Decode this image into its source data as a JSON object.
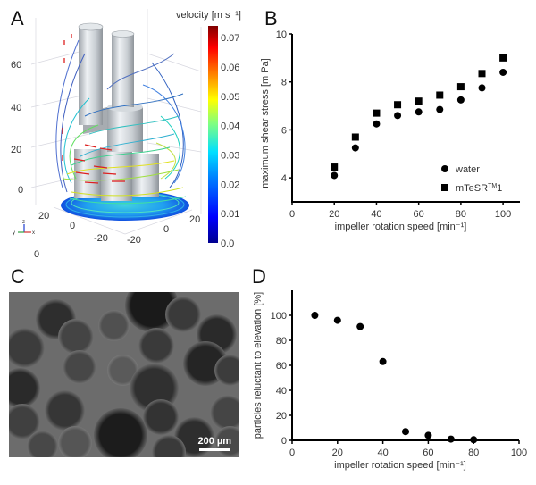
{
  "panels": {
    "A": {
      "letter": "A",
      "colorbar": {
        "title": "velocity [m s⁻¹]",
        "ticks": [
          "0.07",
          "0.06",
          "0.05",
          "0.04",
          "0.03",
          "0.02",
          "0.01",
          "0.0"
        ],
        "range": [
          0.0,
          0.074
        ],
        "colormap": "jet"
      },
      "axis_labels": {
        "z_ticks": [
          "60",
          "40",
          "20",
          "0"
        ],
        "floor_ticks_left": [
          "20",
          "0",
          "-20"
        ],
        "floor_ticks_right": [
          "20",
          "0",
          "-20"
        ],
        "bottom": "0"
      },
      "triad": {
        "z": "z",
        "y": "y",
        "x": "x"
      }
    },
    "C": {
      "letter": "C",
      "scale_bar": "200 µm"
    }
  },
  "chart_data": [
    {
      "id": "B",
      "letter": "B",
      "type": "scatter",
      "title": "",
      "xlabel": "impeller rotation speed [min⁻¹]",
      "ylabel": "maximum shear stress [m Pa]",
      "xlim": [
        0,
        108
      ],
      "ylim": [
        3,
        10
      ],
      "x_ticks": [
        0,
        20,
        40,
        60,
        80,
        100
      ],
      "y_ticks": [
        4,
        6,
        8,
        10
      ],
      "grid": false,
      "legend": "bottom-right",
      "x": [
        20,
        30,
        40,
        50,
        60,
        70,
        80,
        90,
        100
      ],
      "series": [
        {
          "name": "water",
          "marker": "circle",
          "values": [
            4.1,
            5.25,
            6.25,
            6.6,
            6.75,
            6.85,
            7.25,
            7.75,
            8.4
          ]
        },
        {
          "name": "mTeSR™ 1",
          "label": "mTeSR",
          "sup": "TM",
          "suffix": "1",
          "marker": "square",
          "values": [
            4.45,
            5.7,
            6.7,
            7.05,
            7.2,
            7.45,
            7.8,
            8.35,
            9.0
          ]
        }
      ]
    },
    {
      "id": "D",
      "letter": "D",
      "type": "scatter",
      "title": "",
      "xlabel": "impeller rotation speed [min⁻¹]",
      "ylabel": "particles reluctant to elevation [%]",
      "xlim": [
        0,
        100
      ],
      "ylim": [
        0,
        120
      ],
      "x_ticks": [
        0,
        20,
        40,
        60,
        80,
        100
      ],
      "y_ticks": [
        0,
        20,
        40,
        60,
        80,
        100
      ],
      "grid": false,
      "legend": "none",
      "x": [
        10,
        20,
        30,
        40,
        50,
        60,
        70,
        80
      ],
      "series": [
        {
          "name": "particles",
          "marker": "circle",
          "values": [
            100,
            96,
            91,
            63,
            7,
            4,
            1,
            0.5
          ]
        }
      ]
    }
  ]
}
